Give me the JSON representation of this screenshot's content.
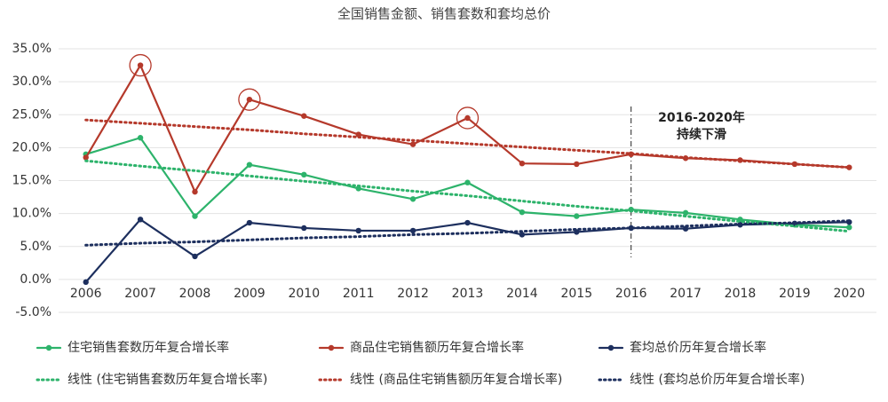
{
  "chart_data": {
    "type": "line",
    "title": "全国销售金额、销售套数和套均总价",
    "categories": [
      "2006",
      "2007",
      "2008",
      "2009",
      "2010",
      "2011",
      "2012",
      "2013",
      "2014",
      "2015",
      "2016",
      "2017",
      "2018",
      "2019",
      "2020"
    ],
    "series": [
      {
        "name": "住宅销售套数历年复合增长率",
        "color": "#2db36b",
        "style": "solid",
        "values": [
          19.0,
          21.5,
          9.6,
          17.4,
          15.9,
          13.8,
          12.2,
          14.7,
          10.2,
          9.6,
          10.6,
          10.1,
          9.1,
          8.3,
          7.9
        ]
      },
      {
        "name": "商品住宅销售额历年复合增长率",
        "color": "#b5392b",
        "style": "solid",
        "circled": [
          1,
          3,
          7
        ],
        "values": [
          18.5,
          32.5,
          13.3,
          27.3,
          24.8,
          22.0,
          20.5,
          24.5,
          17.6,
          17.5,
          19.0,
          18.4,
          18.1,
          17.5,
          17.0
        ]
      },
      {
        "name": "套均总价历年复合增长率",
        "color": "#1d2f5e",
        "style": "solid",
        "values": [
          -0.4,
          9.1,
          3.5,
          8.6,
          7.8,
          7.4,
          7.4,
          8.6,
          6.8,
          7.2,
          7.8,
          7.7,
          8.3,
          8.5,
          8.7
        ]
      },
      {
        "name": "线性 (住宅销售套数历年复合增长率)",
        "color": "#2db36b",
        "style": "dotted",
        "values": [
          18.0,
          17.2,
          16.5,
          15.7,
          14.9,
          14.2,
          13.4,
          12.7,
          11.9,
          11.1,
          10.4,
          9.6,
          8.8,
          8.1,
          7.3
        ]
      },
      {
        "name": "线性 (商品住宅销售额历年复合增长率)",
        "color": "#b5392b",
        "style": "dotted",
        "values": [
          24.2,
          23.7,
          23.2,
          22.7,
          22.1,
          21.6,
          21.1,
          20.6,
          20.1,
          19.6,
          19.1,
          18.5,
          18.0,
          17.5,
          17.0
        ]
      },
      {
        "name": "线性 (套均总价历年复合增长率)",
        "color": "#1d2f5e",
        "style": "dotted",
        "values": [
          5.2,
          5.5,
          5.7,
          6.0,
          6.3,
          6.5,
          6.8,
          7.0,
          7.3,
          7.6,
          7.8,
          8.1,
          8.4,
          8.6,
          8.9
        ]
      }
    ],
    "ylim": [
      -5,
      35
    ],
    "yticks": [
      {
        "value": -5,
        "label": "-5.0%"
      },
      {
        "value": 0,
        "label": "0.0%"
      },
      {
        "value": 5,
        "label": "5.0%"
      },
      {
        "value": 10,
        "label": "10.0%"
      },
      {
        "value": 15,
        "label": "15.0%"
      },
      {
        "value": 20,
        "label": "20.0%"
      },
      {
        "value": 25,
        "label": "25.0%"
      },
      {
        "value": 30,
        "label": "30.0%"
      },
      {
        "value": 35,
        "label": "35.0%"
      }
    ],
    "grid": true,
    "legend": "bottom",
    "annotation": {
      "text": [
        "2016-2020年",
        "持续下滑"
      ],
      "x": "2016"
    }
  }
}
